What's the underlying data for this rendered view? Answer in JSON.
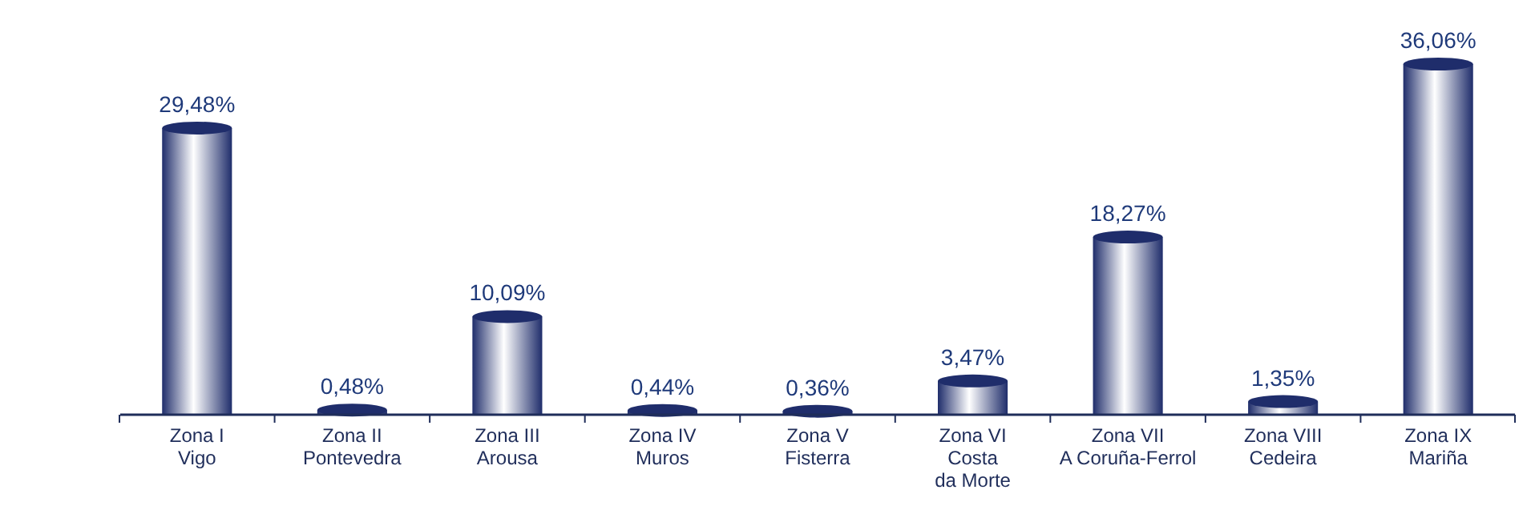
{
  "chart_data": {
    "type": "bar",
    "categories": [
      "Zona I\nVigo",
      "Zona II\nPontevedra",
      "Zona III\nArousa",
      "Zona IV\nMuros",
      "Zona V\nFisterra",
      "Zona VI\nCosta\nda Morte",
      "Zona VII\nA Coruña-Ferrol",
      "Zona VIII\nCedeira",
      "Zona IX\nMariña"
    ],
    "values": [
      29.48,
      0.48,
      10.09,
      0.44,
      0.36,
      3.47,
      18.27,
      1.35,
      36.06
    ],
    "value_labels": [
      "29,48%",
      "0,48%",
      "10,09%",
      "0,44%",
      "0,36%",
      "3,47%",
      "18,27%",
      "1,35%",
      "36,06%"
    ],
    "color": "#1f2d6b"
  }
}
